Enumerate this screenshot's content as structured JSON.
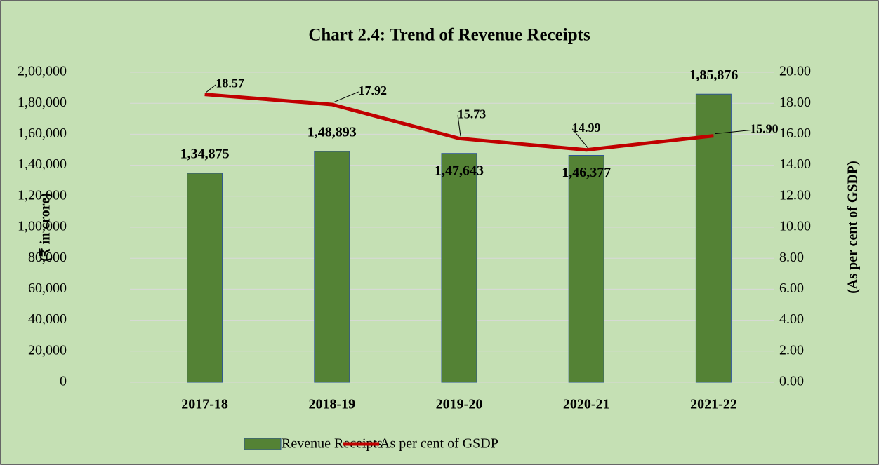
{
  "chart_data": {
    "type": "bar_line",
    "title": "Chart 2.4: Trend of Revenue Receipts",
    "ylabel": "(₹ in crore)",
    "y2label": "(As per cent of GSDP)",
    "categories": [
      "2017-18",
      "2018-19",
      "2019-20",
      "2020-21",
      "2021-22"
    ],
    "series": [
      {
        "name": "Revenue Receipts",
        "type": "bar",
        "color": "#548235",
        "values": [
          134875,
          148893,
          147643,
          146377,
          185876
        ],
        "value_labels": [
          "1,34,875",
          "1,48,893",
          "1,47,643",
          "1,46,377",
          "1,85,876"
        ]
      },
      {
        "name": "As per cent of GSDP",
        "type": "line",
        "axis": "y2",
        "color": "#c00000",
        "values": [
          18.57,
          17.92,
          15.73,
          14.99,
          15.9
        ],
        "value_labels": [
          "18.57",
          "17.92",
          "15.73",
          "14.99",
          "15.90"
        ]
      }
    ],
    "ylim": [
      0,
      200000
    ],
    "yticks": [
      0,
      {
        "value": 20000,
        "label": "20,000"
      },
      {
        "value": 40000,
        "label": "40,000"
      },
      {
        "value": 60000,
        "label": "60,000"
      },
      {
        "value": 80000,
        "label": "80,000"
      },
      {
        "value": 100000,
        "label": "1,00,000"
      },
      {
        "value": 120000,
        "label": "1,20,000"
      },
      {
        "value": 140000,
        "label": "1,40,000"
      },
      {
        "value": 160000,
        "label": "1,60,000"
      },
      {
        "value": 180000,
        "label": "1,80,000"
      },
      {
        "value": 200000,
        "label": "2,00,000"
      }
    ],
    "y2lim": [
      0,
      20
    ],
    "y2ticks": [
      {
        "value": 0,
        "label": "0.00"
      },
      {
        "value": 2,
        "label": "2.00"
      },
      {
        "value": 4,
        "label": "4.00"
      },
      {
        "value": 6,
        "label": "6.00"
      },
      {
        "value": 8,
        "label": "8.00"
      },
      {
        "value": 10,
        "label": "10.00"
      },
      {
        "value": 12,
        "label": "12.00"
      },
      {
        "value": 14,
        "label": "14.00"
      },
      {
        "value": 16,
        "label": "16.00"
      },
      {
        "value": 18,
        "label": "18.00"
      },
      {
        "value": 20,
        "label": "20.00"
      }
    ],
    "grid": true,
    "legend": "bottom"
  }
}
